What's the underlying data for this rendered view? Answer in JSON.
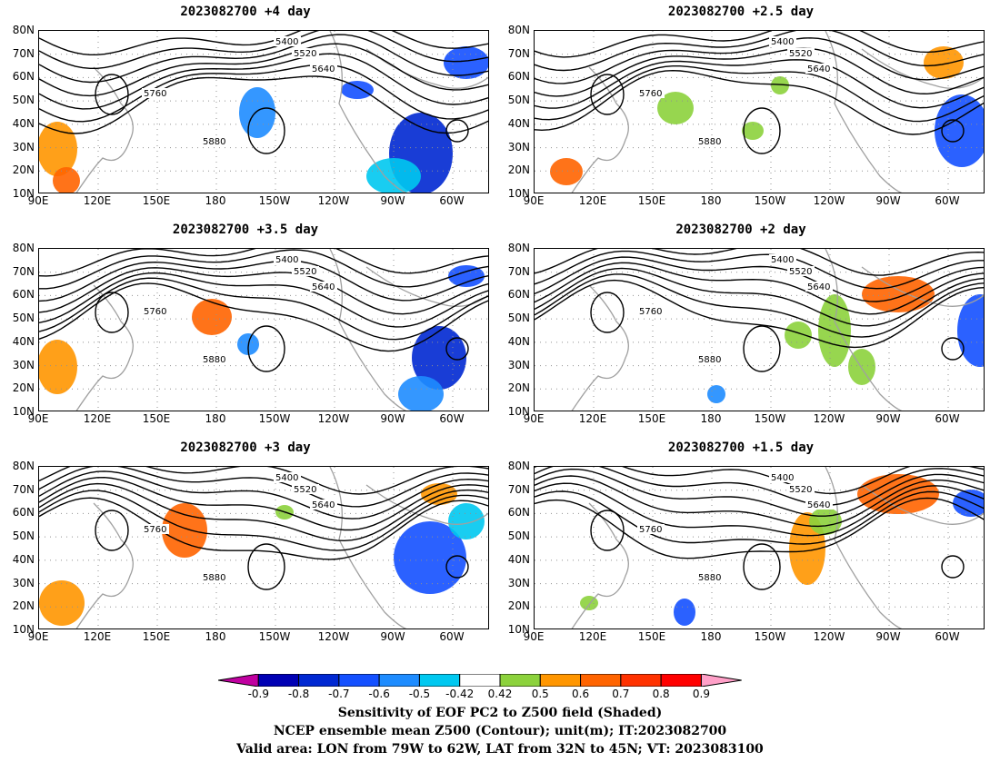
{
  "panels": [
    {
      "title": "2023082700  +4 day"
    },
    {
      "title": "2023082700  +2.5 day"
    },
    {
      "title": "2023082700  +3.5 day"
    },
    {
      "title": "2023082700  +2 day"
    },
    {
      "title": "2023082700  +3 day"
    },
    {
      "title": "2023082700  +1.5 day"
    }
  ],
  "lat_labels": [
    "80N",
    "70N",
    "60N",
    "50N",
    "40N",
    "30N",
    "20N",
    "10N"
  ],
  "lon_labels": [
    "90E",
    "120E",
    "150E",
    "180",
    "150W",
    "120W",
    "90W",
    "60W"
  ],
  "contour_labels": [
    "5400",
    "5520",
    "5640",
    "5760",
    "5880"
  ],
  "colorbar": {
    "ticks": [
      "-0.9",
      "-0.8",
      "-0.7",
      "-0.6",
      "-0.5",
      "-0.42",
      "0.42",
      "0.5",
      "0.6",
      "0.7",
      "0.8",
      "0.9"
    ],
    "colors": [
      "#c000a0",
      "#0000b4",
      "#0028d2",
      "#1450ff",
      "#1e8cff",
      "#00c8f0",
      "#ffffff",
      "#8cd23c",
      "#ff9600",
      "#ff6400",
      "#ff3200",
      "#ff0000",
      "#ffa0c8"
    ]
  },
  "footer": {
    "line1": "Sensitivity of EOF PC2 to Z500 field (Shaded)",
    "line2": "NCEP ensemble mean Z500 (Contour); unit(m); IT:2023082700",
    "line3": "Valid area: LON from 79W to 62W, LAT from 32N to 45N; VT: 2023083100"
  }
}
